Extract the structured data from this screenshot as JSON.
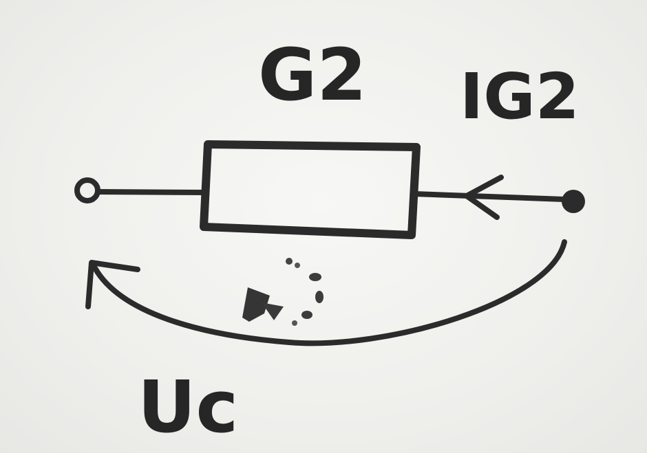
{
  "diagram": {
    "element_label": "G2",
    "current_label": "IG2",
    "voltage_label": "Uc"
  },
  "colors": {
    "ink": "#2b2b2b",
    "paper": "#efefed"
  }
}
